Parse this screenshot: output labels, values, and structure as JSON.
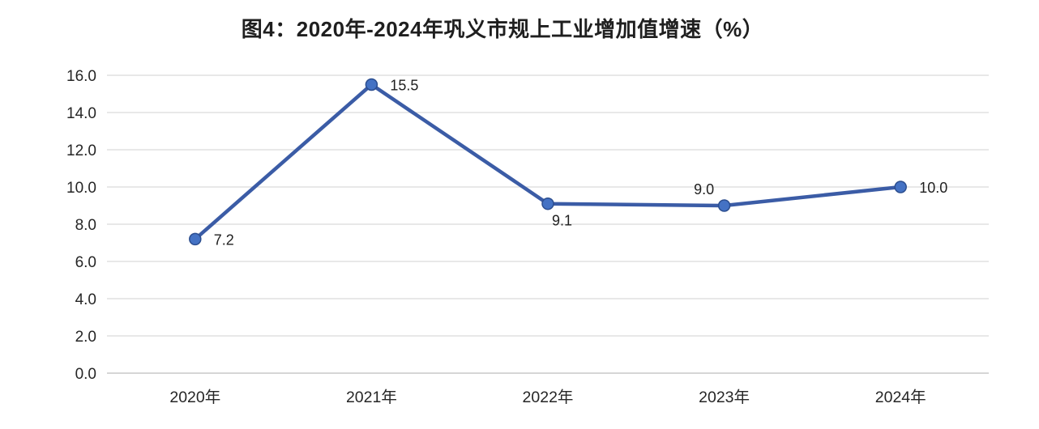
{
  "chart_data": {
    "type": "line",
    "title": "图4：2020年-2024年巩义市规上工业增加值增速（%）",
    "xlabel": "",
    "ylabel": "",
    "categories": [
      "2020年",
      "2021年",
      "2022年",
      "2023年",
      "2024年"
    ],
    "series": [
      {
        "name": "规上工业增加值增速",
        "values": [
          7.2,
          15.5,
          9.1,
          9.0,
          10.0
        ]
      }
    ],
    "data_labels": [
      "7.2",
      "15.5",
      "9.1",
      "9.0",
      "10.0"
    ],
    "label_positions": [
      "right",
      "right",
      "below-right",
      "above-left",
      "right"
    ],
    "ytick_labels": [
      "0.0",
      "2.0",
      "4.0",
      "6.0",
      "8.0",
      "10.0",
      "12.0",
      "14.0",
      "16.0"
    ],
    "ylim": [
      0,
      16
    ],
    "grid": true,
    "legend": "none",
    "colors": {
      "line": "#3B5CA6",
      "marker": "#4472C4",
      "marker_border": "#2C4E8F",
      "grid": "#DADADA",
      "axis_line": "#C9C9C9",
      "axis_text": "#262626",
      "label_text": "#1F1F1F",
      "title_text": "#1F1F1F",
      "background": "#FFFFFF"
    }
  }
}
